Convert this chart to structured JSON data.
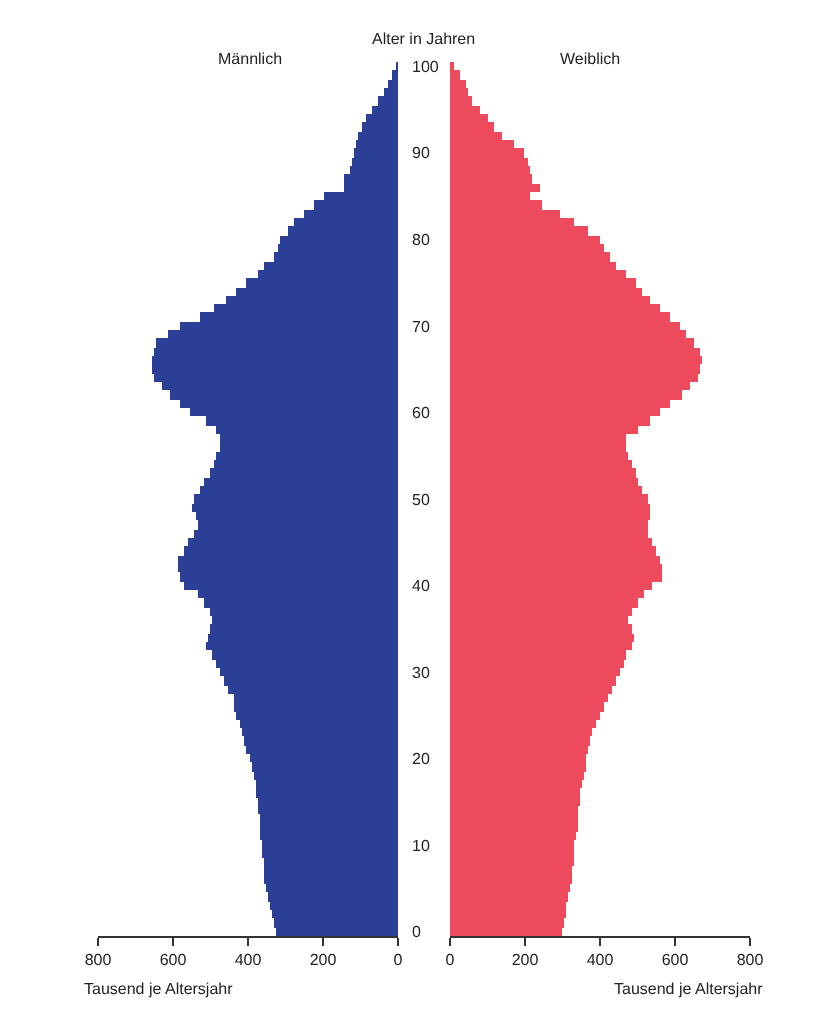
{
  "chart_data": [
    {
      "type": "bar",
      "orientation": "horizontal",
      "title": "Männlich",
      "ylabel": "Alter in Jahren",
      "xlabel": "Tausend je Altersjahr",
      "categories": [
        "100",
        null,
        null,
        null,
        null,
        null,
        null,
        null,
        null,
        null,
        "90",
        null,
        null,
        null,
        null,
        null,
        null,
        null,
        null,
        null,
        "80",
        null,
        null,
        null,
        null,
        null,
        null,
        null,
        null,
        null,
        "70",
        null,
        null,
        null,
        null,
        null,
        null,
        null,
        null,
        null,
        "60",
        null,
        null,
        null,
        null,
        null,
        null,
        null,
        null,
        null,
        "50",
        null,
        null,
        null,
        null,
        null,
        null,
        null,
        null,
        null,
        "40",
        null,
        null,
        null,
        null,
        null,
        null,
        null,
        null,
        null,
        "30",
        null,
        null,
        null,
        null,
        null,
        null,
        null,
        null,
        null,
        "20",
        null,
        null,
        null,
        null,
        null,
        null,
        null,
        null,
        null,
        "10",
        null,
        null,
        null,
        null,
        null,
        null,
        null,
        null,
        null,
        "0"
      ],
      "color": "#2b3f96",
      "values": [
        5,
        15,
        25,
        40,
        55,
        70,
        85,
        95,
        105,
        110,
        120,
        125,
        130,
        145,
        145,
        200,
        225,
        250,
        275,
        295,
        315,
        320,
        330,
        355,
        375,
        405,
        430,
        460,
        490,
        530,
        580,
        615,
        645,
        650,
        655,
        655,
        650,
        630,
        610,
        580,
        555,
        510,
        485,
        475,
        475,
        485,
        490,
        500,
        515,
        530,
        545,
        550,
        540,
        535,
        545,
        560,
        570,
        585,
        585,
        580,
        570,
        535,
        520,
        500,
        495,
        500,
        505,
        510,
        495,
        485,
        475,
        465,
        455,
        440,
        435,
        430,
        420,
        415,
        410,
        405,
        395,
        390,
        385,
        380,
        380,
        375,
        375,
        370,
        370,
        370,
        365,
        365,
        360,
        355,
        355,
        350,
        345,
        340,
        335,
        330,
        325
      ],
      "xlim": [
        800,
        0
      ],
      "xticks": [
        800,
        600,
        400,
        200,
        0
      ]
    },
    {
      "type": "bar",
      "orientation": "horizontal",
      "title": "Weiblich",
      "xlabel": "Tausend je Altersjahr",
      "categories": [
        "100",
        null,
        null,
        null,
        null,
        null,
        null,
        null,
        null,
        null,
        "90",
        null,
        null,
        null,
        null,
        null,
        null,
        null,
        null,
        null,
        "80",
        null,
        null,
        null,
        null,
        null,
        null,
        null,
        null,
        null,
        "70",
        null,
        null,
        null,
        null,
        null,
        null,
        null,
        null,
        null,
        "60",
        null,
        null,
        null,
        null,
        null,
        null,
        null,
        null,
        null,
        "50",
        null,
        null,
        null,
        null,
        null,
        null,
        null,
        null,
        null,
        "40",
        null,
        null,
        null,
        null,
        null,
        null,
        null,
        null,
        null,
        "30",
        null,
        null,
        null,
        null,
        null,
        null,
        null,
        null,
        null,
        "20",
        null,
        null,
        null,
        null,
        null,
        null,
        null,
        null,
        null,
        "10",
        null,
        null,
        null,
        null,
        null,
        null,
        null,
        null,
        null,
        "0"
      ],
      "color": "#ee4a5e",
      "values": [
        10,
        25,
        40,
        50,
        60,
        80,
        100,
        115,
        140,
        170,
        195,
        210,
        215,
        220,
        240,
        215,
        245,
        295,
        330,
        370,
        400,
        410,
        425,
        445,
        470,
        495,
        510,
        535,
        560,
        585,
        615,
        630,
        650,
        665,
        670,
        665,
        660,
        640,
        620,
        585,
        560,
        535,
        500,
        470,
        470,
        475,
        485,
        495,
        500,
        510,
        530,
        535,
        535,
        530,
        530,
        540,
        550,
        560,
        565,
        565,
        540,
        515,
        500,
        485,
        475,
        485,
        490,
        485,
        470,
        465,
        455,
        440,
        430,
        420,
        410,
        400,
        390,
        380,
        375,
        370,
        365,
        360,
        355,
        350,
        345,
        345,
        340,
        340,
        340,
        335,
        330,
        330,
        330,
        325,
        325,
        320,
        315,
        310,
        310,
        305,
        300
      ],
      "xlim": [
        0,
        800
      ],
      "xticks": [
        0,
        200,
        400,
        600,
        800
      ],
      "tick_labels": "x"
    }
  ]
}
